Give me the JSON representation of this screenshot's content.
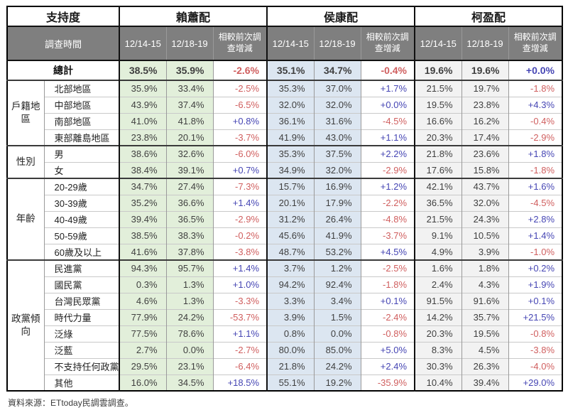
{
  "header": {
    "support_label": "支持度",
    "time_label": "調查時間",
    "date_cols": [
      "12/14-15",
      "12/18-19"
    ],
    "change_col": "相較前次調查增減"
  },
  "groups": [
    {
      "name": "賴蕭配",
      "header_color": "#e2efda"
    },
    {
      "name": "侯康配",
      "header_color": "#dce6f1"
    },
    {
      "name": "柯盈配",
      "header_color": "#ffffff"
    }
  ],
  "colors": {
    "header_bar": "#7f7f7f",
    "lai_cells": "#e2efda",
    "hou_cells": "#dce6f1",
    "ko_cells": "#f2f2f2",
    "positive_change": "#4646b4",
    "negative_change": "#d05f5f"
  },
  "total": {
    "label": "總計",
    "values": [
      "38.5%",
      "35.9%",
      "-2.6%",
      "35.1%",
      "34.7%",
      "-0.4%",
      "19.6%",
      "19.6%",
      "+0.0%"
    ]
  },
  "sections": [
    {
      "label": "戶籍地區",
      "rows": [
        {
          "label": "北部地區",
          "values": [
            "35.9%",
            "33.4%",
            "-2.5%",
            "35.3%",
            "37.0%",
            "+1.7%",
            "21.5%",
            "19.7%",
            "-1.8%"
          ]
        },
        {
          "label": "中部地區",
          "values": [
            "43.9%",
            "37.4%",
            "-6.5%",
            "32.0%",
            "32.0%",
            "+0.0%",
            "19.5%",
            "23.8%",
            "+4.3%"
          ]
        },
        {
          "label": "南部地區",
          "values": [
            "41.0%",
            "41.8%",
            "+0.8%",
            "36.1%",
            "31.6%",
            "-4.5%",
            "16.6%",
            "16.2%",
            "-0.4%"
          ]
        },
        {
          "label": "東部離島地區",
          "values": [
            "23.8%",
            "20.1%",
            "-3.7%",
            "41.9%",
            "43.0%",
            "+1.1%",
            "20.3%",
            "17.4%",
            "-2.9%"
          ]
        }
      ]
    },
    {
      "label": "性別",
      "rows": [
        {
          "label": "男",
          "values": [
            "38.6%",
            "32.6%",
            "-6.0%",
            "35.3%",
            "37.5%",
            "+2.2%",
            "21.8%",
            "23.6%",
            "+1.8%"
          ]
        },
        {
          "label": "女",
          "values": [
            "38.4%",
            "39.1%",
            "+0.7%",
            "34.9%",
            "32.0%",
            "-2.9%",
            "17.6%",
            "15.8%",
            "-1.8%"
          ]
        }
      ]
    },
    {
      "label": "年齡",
      "rows": [
        {
          "label": "20-29歲",
          "values": [
            "34.7%",
            "27.4%",
            "-7.3%",
            "15.7%",
            "16.9%",
            "+1.2%",
            "42.1%",
            "43.7%",
            "+1.6%"
          ]
        },
        {
          "label": "30-39歲",
          "values": [
            "35.2%",
            "36.6%",
            "+1.4%",
            "20.1%",
            "17.9%",
            "-2.2%",
            "36.5%",
            "32.0%",
            "-4.5%"
          ]
        },
        {
          "label": "40-49歲",
          "values": [
            "39.4%",
            "36.5%",
            "-2.9%",
            "31.2%",
            "26.4%",
            "-4.8%",
            "21.5%",
            "24.3%",
            "+2.8%"
          ]
        },
        {
          "label": "50-59歲",
          "values": [
            "38.5%",
            "38.3%",
            "-0.2%",
            "45.6%",
            "41.9%",
            "-3.7%",
            "9.1%",
            "10.5%",
            "+1.4%"
          ]
        },
        {
          "label": "60歲及以上",
          "values": [
            "41.6%",
            "37.8%",
            "-3.8%",
            "48.7%",
            "53.2%",
            "+4.5%",
            "4.9%",
            "3.9%",
            "-1.0%"
          ]
        }
      ]
    },
    {
      "label": "政黨傾向",
      "rows": [
        {
          "label": "民進黨",
          "values": [
            "94.3%",
            "95.7%",
            "+1.4%",
            "3.7%",
            "1.2%",
            "-2.5%",
            "1.6%",
            "1.8%",
            "+0.2%"
          ]
        },
        {
          "label": "國民黨",
          "values": [
            "0.3%",
            "1.3%",
            "+1.0%",
            "94.2%",
            "92.4%",
            "-1.8%",
            "2.4%",
            "4.3%",
            "+1.9%"
          ]
        },
        {
          "label": "台灣民眾黨",
          "values": [
            "4.6%",
            "1.3%",
            "-3.3%",
            "3.3%",
            "3.4%",
            "+0.1%",
            "91.5%",
            "91.6%",
            "+0.1%"
          ]
        },
        {
          "label": "時代力量",
          "values": [
            "77.9%",
            "24.2%",
            "-53.7%",
            "3.9%",
            "1.5%",
            "-2.4%",
            "14.2%",
            "35.7%",
            "+21.5%"
          ]
        },
        {
          "label": "泛綠",
          "values": [
            "77.5%",
            "78.6%",
            "+1.1%",
            "0.8%",
            "0.0%",
            "-0.8%",
            "20.3%",
            "19.5%",
            "-0.8%"
          ]
        },
        {
          "label": "泛藍",
          "values": [
            "2.7%",
            "0.0%",
            "-2.7%",
            "80.0%",
            "85.0%",
            "+5.0%",
            "8.3%",
            "4.5%",
            "-3.8%"
          ]
        },
        {
          "label": "不支持任何政黨",
          "values": [
            "29.5%",
            "23.1%",
            "-6.4%",
            "21.8%",
            "24.2%",
            "+2.4%",
            "30.3%",
            "26.3%",
            "-4.0%"
          ]
        },
        {
          "label": "其他",
          "values": [
            "16.0%",
            "34.5%",
            "+18.5%",
            "55.1%",
            "19.2%",
            "-35.9%",
            "10.4%",
            "39.4%",
            "+29.0%"
          ]
        }
      ]
    }
  ],
  "source": "資料來源：ETtoday民調雲調查。"
}
